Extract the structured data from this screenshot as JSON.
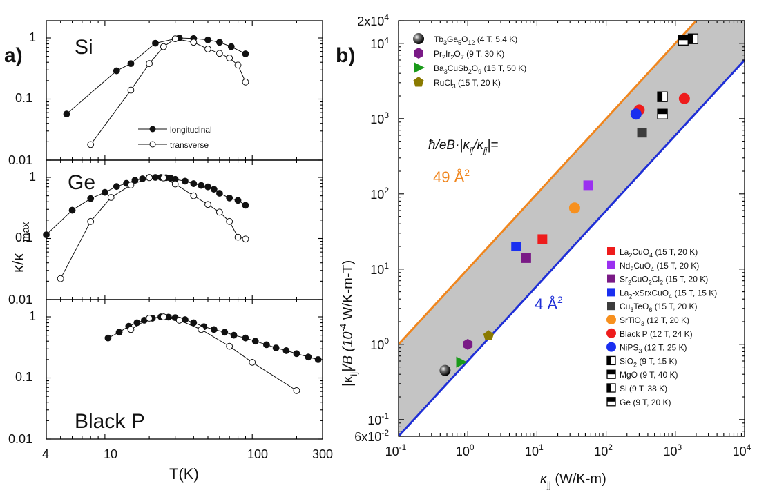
{
  "figure": {
    "left": {
      "tag": "a)",
      "xlabel": "T(K)",
      "ylabel_main": "κ/κ",
      "ylabel_sub": "max",
      "ytick_labels": [
        "1",
        "0.1",
        "0.01"
      ],
      "xtick_labels": [
        "4",
        "10",
        "100",
        "300"
      ],
      "series_names": {
        "longitudinal": "longitudinal",
        "transverse": "transverse"
      }
    },
    "right": {
      "tag": "b)",
      "formula": "ħ/eB·|κ",
      "formula_tail": "|=",
      "line_upper_label": "49 Å",
      "line_lower_label": "4 Å",
      "superscript_two": "2",
      "ylabel": "|κ",
      "ylabel_mid": "|/B (10",
      "ylabel_exp": "-4",
      "ylabel_tail": " W/K-m-T)",
      "xlabel": "κ",
      "xlabel_tail": " (W/K-m)",
      "sub_ij": "ij",
      "sub_jj": "jj",
      "ytick_labels": [
        {
          "base": "2x10",
          "exp": "4"
        },
        {
          "base": "10",
          "exp": "4"
        },
        {
          "base": "10",
          "exp": "3"
        },
        {
          "base": "10",
          "exp": "2"
        },
        {
          "base": "10",
          "exp": "1"
        },
        {
          "base": "10",
          "exp": "0"
        },
        {
          "base": "10",
          "exp": "-1"
        },
        {
          "base": "6x10",
          "exp": "-2"
        }
      ],
      "xtick_labels": [
        {
          "base": "10",
          "exp": "-1"
        },
        {
          "base": "10",
          "exp": "0"
        },
        {
          "base": "10",
          "exp": "1"
        },
        {
          "base": "10",
          "exp": "2"
        },
        {
          "base": "10",
          "exp": "3"
        },
        {
          "base": "10",
          "exp": "4"
        }
      ]
    }
  },
  "colors": {
    "upper_line": "#f0861e",
    "lower_line": "#1f2fd6",
    "shade": "#c4c4c4",
    "red": "#ee1c1c",
    "violet": "#9b30f0",
    "purple": "#7a1a86",
    "blue": "#1a2ff0",
    "gray": "#3c3c3c",
    "orange": "#f7901e",
    "green": "#1a9a1a",
    "olive": "#8a7a00"
  },
  "chart_data": [
    {
      "type": "line",
      "panel": "Si",
      "title": "Si",
      "xscale": "log",
      "yscale": "log",
      "xlim": [
        4,
        300
      ],
      "ylim": [
        0.01,
        1.5
      ],
      "xlabel": "T(K)",
      "ylabel": "κ/κmax",
      "series": [
        {
          "name": "longitudinal",
          "marker": "filled",
          "x": [
            5.5,
            12,
            15,
            22,
            32,
            40,
            50,
            60,
            72,
            90
          ],
          "y": [
            0.057,
            0.29,
            0.38,
            0.82,
            1.0,
            0.98,
            0.93,
            0.85,
            0.72,
            0.55
          ]
        },
        {
          "name": "transverse",
          "marker": "open",
          "x": [
            8,
            15,
            20,
            25,
            30,
            40,
            50,
            60,
            70,
            80,
            90
          ],
          "y": [
            0.018,
            0.14,
            0.38,
            0.72,
            0.97,
            0.85,
            0.66,
            0.56,
            0.47,
            0.36,
            0.19
          ]
        }
      ]
    },
    {
      "type": "line",
      "panel": "Ge",
      "title": "Ge",
      "xscale": "log",
      "yscale": "log",
      "xlim": [
        4,
        300
      ],
      "ylim": [
        0.01,
        1.5
      ],
      "series": [
        {
          "name": "longitudinal",
          "marker": "filled",
          "x": [
            4,
            6,
            8,
            10,
            12,
            14,
            16,
            18,
            20,
            22,
            24,
            26,
            28,
            30,
            35,
            40,
            45,
            50,
            55,
            60,
            70,
            80,
            90
          ],
          "y": [
            0.115,
            0.29,
            0.45,
            0.57,
            0.71,
            0.8,
            0.9,
            0.95,
            1.0,
            1.0,
            1.0,
            0.99,
            0.97,
            0.93,
            0.87,
            0.79,
            0.74,
            0.7,
            0.64,
            0.55,
            0.46,
            0.42,
            0.35
          ]
        },
        {
          "name": "transverse",
          "marker": "open",
          "x": [
            5,
            8,
            11,
            15,
            20,
            25,
            30,
            40,
            50,
            60,
            70,
            80,
            90
          ],
          "y": [
            0.022,
            0.19,
            0.47,
            0.75,
            0.99,
            0.98,
            0.78,
            0.5,
            0.36,
            0.27,
            0.19,
            0.105,
            0.098
          ]
        }
      ]
    },
    {
      "type": "line",
      "panel": "Black P",
      "title": "Black P",
      "xscale": "log",
      "yscale": "log",
      "xlim": [
        4,
        300
      ],
      "ylim": [
        0.01,
        1.5
      ],
      "series": [
        {
          "name": "longitudinal",
          "marker": "filled",
          "x": [
            10.5,
            12.5,
            14.5,
            16.5,
            18.5,
            21,
            24,
            27,
            30,
            35,
            40,
            47,
            55,
            65,
            75,
            90,
            105,
            125,
            145,
            170,
            200,
            240,
            280
          ],
          "y": [
            0.45,
            0.56,
            0.7,
            0.8,
            0.88,
            0.95,
            1.0,
            0.99,
            0.97,
            0.9,
            0.8,
            0.69,
            0.62,
            0.56,
            0.5,
            0.45,
            0.4,
            0.35,
            0.31,
            0.28,
            0.25,
            0.22,
            0.2
          ]
        },
        {
          "name": "transverse",
          "marker": "open",
          "x": [
            15,
            20,
            25,
            32,
            45,
            70,
            100,
            200
          ],
          "y": [
            0.62,
            0.95,
            1.0,
            0.88,
            0.62,
            0.33,
            0.18,
            0.062
          ]
        }
      ]
    },
    {
      "type": "scatter",
      "panel": "b",
      "xscale": "log",
      "yscale": "log",
      "xlim": [
        0.1,
        10000
      ],
      "ylim": [
        0.06,
        20000
      ],
      "xlabel": "κjj (W/K-m)",
      "ylabel": "|κij|/B (10^-4 W/K-m-T)",
      "annotation": "ħ/eB·|κij/κjj|=",
      "lines": [
        {
          "name": "49 Å^2",
          "slope": 1,
          "coef": 10,
          "color": "upper_line"
        },
        {
          "name": "4 Å^2",
          "slope": 1,
          "coef": 0.6,
          "color": "lower_line"
        }
      ],
      "points": [
        {
          "name": "Tb3Ga5O12",
          "label": "Tb3Ga5O12 (4 T, 5.4 K)",
          "x": 0.47,
          "y": 0.45,
          "shape": "sphere",
          "color": "#111111"
        },
        {
          "name": "Pr2Ir2O7",
          "label": "Pr2Ir2O7 (9 T, 30 K)",
          "x": 1.0,
          "y": 1.0,
          "shape": "hexagon",
          "color": "#7a1a86"
        },
        {
          "name": "Ba3CuSb2O9",
          "label": "Ba3CuSb2O9 (15 T, 50 K)",
          "x": 0.8,
          "y": 0.58,
          "shape": "triangle-right",
          "color": "#1a9a1a"
        },
        {
          "name": "RuCl3",
          "label": "RuCl3 (15 T, 20 K)",
          "x": 2.0,
          "y": 1.3,
          "shape": "pentagon",
          "color": "#8a7a00"
        },
        {
          "name": "La2CuO4",
          "label": "La2CuO4 (15 T, 20 K)",
          "x": 12,
          "y": 25,
          "shape": "square",
          "color": "#ee1c1c"
        },
        {
          "name": "Nd2CuO4",
          "label": "Nd2CuO4 (15 T, 20 K)",
          "x": 55,
          "y": 130,
          "shape": "square",
          "color": "#9b30f0"
        },
        {
          "name": "Sr2CuO2Cl2",
          "label": "Sr2CuO2Cl2 (15 T, 20 K)",
          "x": 7,
          "y": 14,
          "shape": "square",
          "color": "#7a1a86"
        },
        {
          "name": "La2-xSrxCuO4",
          "label": "La2-xSrxCuO4 (15 T, 15 K)",
          "x": 5,
          "y": 20,
          "shape": "square",
          "color": "#1a2ff0"
        },
        {
          "name": "Cu3TeO6",
          "label": "Cu3TeO6 (15 T, 20 K)",
          "x": 330,
          "y": 650,
          "shape": "square",
          "color": "#3c3c3c"
        },
        {
          "name": "SrTiO3",
          "label": "SrTiO3 (12 T, 20 K)",
          "x": 35,
          "y": 65,
          "shape": "circle",
          "color": "#f7901e"
        },
        {
          "name": "Black P",
          "label": "Black P  (12 T, 24 K)",
          "x": [
            300,
            1350
          ],
          "y": [
            1300,
            1850
          ],
          "shape": "circle",
          "color": "#ee1c1c"
        },
        {
          "name": "NiPS3",
          "label": "NiPS3 (12 T, 25 K)",
          "x": 270,
          "y": 1150,
          "shape": "circle",
          "color": "#1a2ff0"
        },
        {
          "name": "SiO2",
          "label": "SiO2 (9 T, 15 K)",
          "x": 650,
          "y": 1950,
          "shape": "half-left",
          "color": "#000000"
        },
        {
          "name": "MgO",
          "label": "MgO (9 T, 40 K)",
          "x": 650,
          "y": 1150,
          "shape": "half-top",
          "color": "#000000"
        },
        {
          "name": "Si",
          "label": "Si (9 T, 38 K)",
          "x": 1800,
          "y": 11500,
          "shape": "half-left",
          "color": "#000000"
        },
        {
          "name": "Ge",
          "label": "Ge (9 T, 20 K)",
          "x": 1300,
          "y": 11000,
          "shape": "half-top",
          "color": "#000000"
        }
      ]
    }
  ]
}
